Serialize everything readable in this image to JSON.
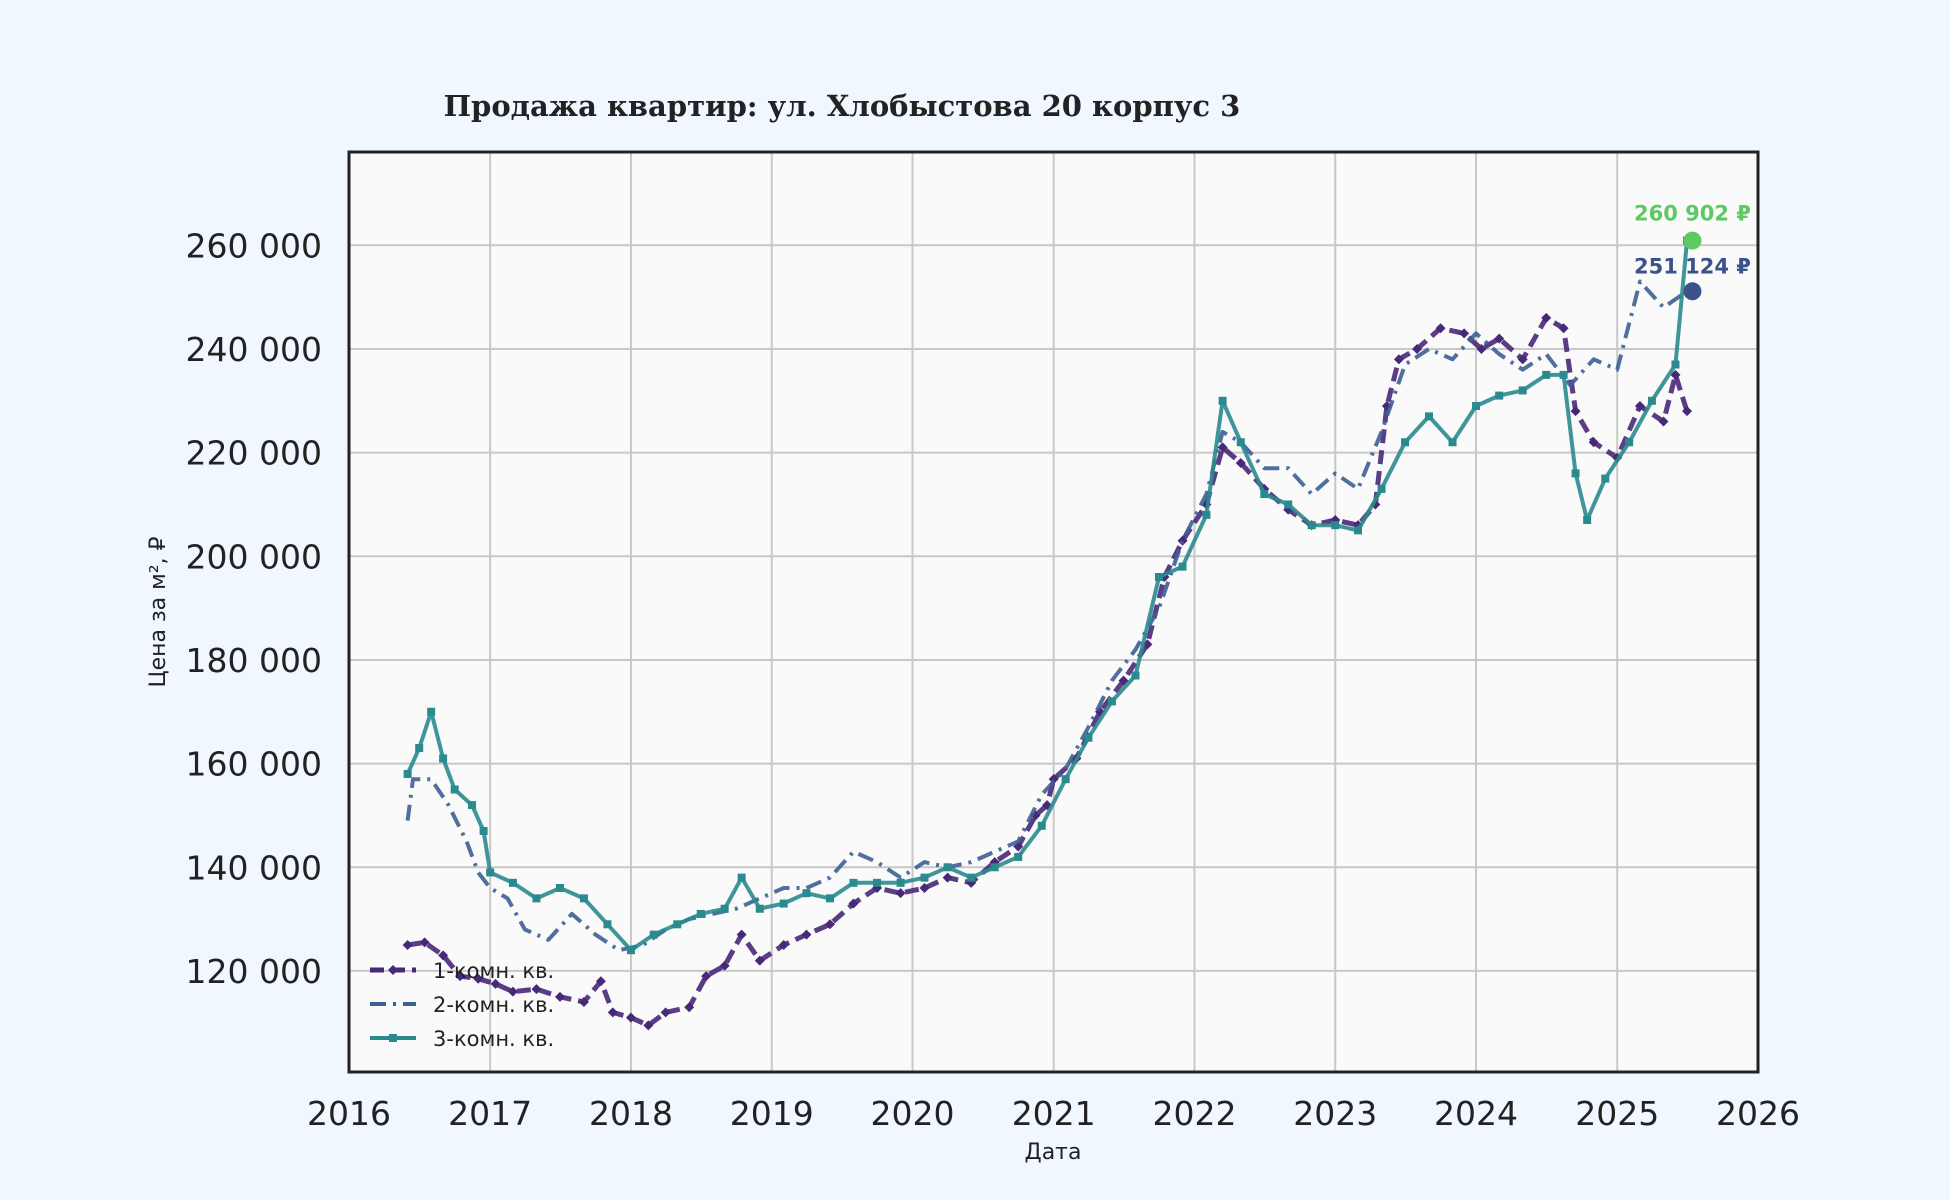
{
  "chart_data": {
    "type": "line",
    "title": "Продажа квартир: ул. Хлобыстова 20 корпус 3",
    "xlabel": "Дата",
    "ylabel": "Цена за м², ₽",
    "xlim": [
      "2016-01-01",
      "2026-01-01"
    ],
    "ylim": [
      100500,
      278000
    ],
    "x_ticks": [
      "2016",
      "2017",
      "2018",
      "2019",
      "2020",
      "2021",
      "2022",
      "2023",
      "2024",
      "2025",
      "2026"
    ],
    "y_ticks": [
      "120 000",
      "140 000",
      "160 000",
      "180 000",
      "200 000",
      "220 000",
      "240 000",
      "260 000"
    ],
    "y_tick_values": [
      120000,
      140000,
      160000,
      180000,
      200000,
      220000,
      240000,
      260000
    ],
    "grid": true,
    "legend_position": "bottom-left",
    "series": [
      {
        "name": "1-комн. кв.",
        "color": "#482878",
        "style": "dashed, diamond markers",
        "points": [
          [
            "2016-06-01",
            125000
          ],
          [
            "2016-07-15",
            125500
          ],
          [
            "2016-09-01",
            123000
          ],
          [
            "2016-10-15",
            119000
          ],
          [
            "2016-12-01",
            118500
          ],
          [
            "2017-01-15",
            117500
          ],
          [
            "2017-03-01",
            116000
          ],
          [
            "2017-05-01",
            116500
          ],
          [
            "2017-07-01",
            115000
          ],
          [
            "2017-09-01",
            114000
          ],
          [
            "2017-10-15",
            118000
          ],
          [
            "2017-11-15",
            112000
          ],
          [
            "2018-01-01",
            111000
          ],
          [
            "2018-02-15",
            109500
          ],
          [
            "2018-04-01",
            112000
          ],
          [
            "2018-06-01",
            113000
          ],
          [
            "2018-07-15",
            119000
          ],
          [
            "2018-09-01",
            121000
          ],
          [
            "2018-10-15",
            127000
          ],
          [
            "2018-12-01",
            122000
          ],
          [
            "2019-02-01",
            125000
          ],
          [
            "2019-04-01",
            127000
          ],
          [
            "2019-06-01",
            129000
          ],
          [
            "2019-08-01",
            133000
          ],
          [
            "2019-10-01",
            136000
          ],
          [
            "2019-12-01",
            135000
          ],
          [
            "2020-02-01",
            136000
          ],
          [
            "2020-04-01",
            138000
          ],
          [
            "2020-06-01",
            137000
          ],
          [
            "2020-08-01",
            141000
          ],
          [
            "2020-10-01",
            144000
          ],
          [
            "2020-11-15",
            150000
          ],
          [
            "2020-12-15",
            152000
          ],
          [
            "2021-01-01",
            157000
          ],
          [
            "2021-03-01",
            161000
          ],
          [
            "2021-05-01",
            170000
          ],
          [
            "2021-07-01",
            176000
          ],
          [
            "2021-09-01",
            183000
          ],
          [
            "2021-10-15",
            196000
          ],
          [
            "2021-12-01",
            203000
          ],
          [
            "2022-02-01",
            210000
          ],
          [
            "2022-03-15",
            221000
          ],
          [
            "2022-05-01",
            218000
          ],
          [
            "2022-07-01",
            213000
          ],
          [
            "2022-09-01",
            209000
          ],
          [
            "2022-11-01",
            206000
          ],
          [
            "2023-01-01",
            207000
          ],
          [
            "2023-03-01",
            206000
          ],
          [
            "2023-04-15",
            210000
          ],
          [
            "2023-05-15",
            229000
          ],
          [
            "2023-06-15",
            238000
          ],
          [
            "2023-08-01",
            240000
          ],
          [
            "2023-10-01",
            244000
          ],
          [
            "2023-12-01",
            243000
          ],
          [
            "2024-01-15",
            240000
          ],
          [
            "2024-03-01",
            242000
          ],
          [
            "2024-05-01",
            238000
          ],
          [
            "2024-07-01",
            246000
          ],
          [
            "2024-08-15",
            244000
          ],
          [
            "2024-09-15",
            228000
          ],
          [
            "2024-11-01",
            222000
          ],
          [
            "2025-01-01",
            219000
          ],
          [
            "2025-03-01",
            229000
          ],
          [
            "2025-05-01",
            226000
          ],
          [
            "2025-06-01",
            235000
          ],
          [
            "2025-07-01",
            228000
          ]
        ]
      },
      {
        "name": "2-комн. кв.",
        "color": "#3e5f93",
        "style": "dash-dot",
        "points": [
          [
            "2016-06-01",
            149000
          ],
          [
            "2016-06-15",
            157000
          ],
          [
            "2016-08-01",
            157000
          ],
          [
            "2016-09-15",
            152000
          ],
          [
            "2016-11-01",
            145000
          ],
          [
            "2016-12-01",
            139000
          ],
          [
            "2017-01-01",
            136000
          ],
          [
            "2017-02-15",
            134000
          ],
          [
            "2017-04-01",
            128000
          ],
          [
            "2017-06-01",
            126000
          ],
          [
            "2017-08-01",
            131000
          ],
          [
            "2017-10-01",
            127000
          ],
          [
            "2017-12-01",
            124000
          ],
          [
            "2018-02-01",
            125000
          ],
          [
            "2018-04-01",
            128000
          ],
          [
            "2018-06-01",
            130000
          ],
          [
            "2018-08-01",
            131000
          ],
          [
            "2018-10-01",
            132000
          ],
          [
            "2018-12-01",
            134000
          ],
          [
            "2019-02-01",
            136000
          ],
          [
            "2019-04-01",
            136000
          ],
          [
            "2019-06-01",
            138000
          ],
          [
            "2019-08-01",
            143000
          ],
          [
            "2019-10-01",
            141000
          ],
          [
            "2019-12-01",
            138000
          ],
          [
            "2020-02-01",
            141000
          ],
          [
            "2020-04-01",
            140000
          ],
          [
            "2020-06-01",
            141000
          ],
          [
            "2020-08-01",
            143000
          ],
          [
            "2020-10-01",
            145000
          ],
          [
            "2020-12-01",
            154000
          ],
          [
            "2021-02-01",
            159000
          ],
          [
            "2021-04-01",
            167000
          ],
          [
            "2021-06-01",
            176000
          ],
          [
            "2021-08-01",
            182000
          ],
          [
            "2021-10-01",
            190000
          ],
          [
            "2021-12-01",
            203000
          ],
          [
            "2022-02-01",
            212000
          ],
          [
            "2022-03-15",
            224000
          ],
          [
            "2022-05-01",
            222000
          ],
          [
            "2022-07-01",
            217000
          ],
          [
            "2022-09-01",
            217000
          ],
          [
            "2022-11-01",
            212000
          ],
          [
            "2023-01-01",
            216000
          ],
          [
            "2023-03-01",
            213000
          ],
          [
            "2023-05-01",
            224000
          ],
          [
            "2023-07-01",
            237000
          ],
          [
            "2023-09-01",
            240000
          ],
          [
            "2023-11-01",
            238000
          ],
          [
            "2024-01-01",
            243000
          ],
          [
            "2024-03-01",
            239000
          ],
          [
            "2024-05-01",
            236000
          ],
          [
            "2024-07-01",
            239000
          ],
          [
            "2024-09-01",
            233000
          ],
          [
            "2024-11-01",
            238000
          ],
          [
            "2025-01-01",
            236000
          ],
          [
            "2025-03-01",
            253000
          ],
          [
            "2025-05-01",
            248000
          ],
          [
            "2025-07-01",
            251124
          ]
        ]
      },
      {
        "name": "3-комн. кв.",
        "color": "#2a8a8e",
        "style": "solid, square markers",
        "points": [
          [
            "2016-06-01",
            158000
          ],
          [
            "2016-07-01",
            163000
          ],
          [
            "2016-08-01",
            170000
          ],
          [
            "2016-09-01",
            161000
          ],
          [
            "2016-10-01",
            155000
          ],
          [
            "2016-11-15",
            152000
          ],
          [
            "2016-12-15",
            147000
          ],
          [
            "2017-01-01",
            139000
          ],
          [
            "2017-03-01",
            137000
          ],
          [
            "2017-05-01",
            134000
          ],
          [
            "2017-07-01",
            136000
          ],
          [
            "2017-09-01",
            134000
          ],
          [
            "2017-11-01",
            129000
          ],
          [
            "2018-01-01",
            124000
          ],
          [
            "2018-03-01",
            127000
          ],
          [
            "2018-05-01",
            129000
          ],
          [
            "2018-07-01",
            131000
          ],
          [
            "2018-09-01",
            132000
          ],
          [
            "2018-10-15",
            138000
          ],
          [
            "2018-12-01",
            132000
          ],
          [
            "2019-02-01",
            133000
          ],
          [
            "2019-04-01",
            135000
          ],
          [
            "2019-06-01",
            134000
          ],
          [
            "2019-08-01",
            137000
          ],
          [
            "2019-10-01",
            137000
          ],
          [
            "2019-12-01",
            137000
          ],
          [
            "2020-02-01",
            138000
          ],
          [
            "2020-04-01",
            140000
          ],
          [
            "2020-06-01",
            138000
          ],
          [
            "2020-08-01",
            140000
          ],
          [
            "2020-10-01",
            142000
          ],
          [
            "2020-12-01",
            148000
          ],
          [
            "2021-02-01",
            157000
          ],
          [
            "2021-04-01",
            165000
          ],
          [
            "2021-06-01",
            172000
          ],
          [
            "2021-08-01",
            177000
          ],
          [
            "2021-10-01",
            196000
          ],
          [
            "2021-12-01",
            198000
          ],
          [
            "2022-02-01",
            208000
          ],
          [
            "2022-03-15",
            230000
          ],
          [
            "2022-05-01",
            222000
          ],
          [
            "2022-07-01",
            212000
          ],
          [
            "2022-09-01",
            210000
          ],
          [
            "2022-11-01",
            206000
          ],
          [
            "2023-01-01",
            206000
          ],
          [
            "2023-03-01",
            205000
          ],
          [
            "2023-05-01",
            213000
          ],
          [
            "2023-07-01",
            222000
          ],
          [
            "2023-09-01",
            227000
          ],
          [
            "2023-11-01",
            222000
          ],
          [
            "2024-01-01",
            229000
          ],
          [
            "2024-03-01",
            231000
          ],
          [
            "2024-05-01",
            232000
          ],
          [
            "2024-07-01",
            235000
          ],
          [
            "2024-08-15",
            235000
          ],
          [
            "2024-09-15",
            216000
          ],
          [
            "2024-10-15",
            207000
          ],
          [
            "2024-12-01",
            215000
          ],
          [
            "2025-02-01",
            222000
          ],
          [
            "2025-04-01",
            230000
          ],
          [
            "2025-06-01",
            237000
          ],
          [
            "2025-07-01",
            260902
          ]
        ]
      }
    ],
    "annotations": [
      {
        "text": "260 902 ₽",
        "date": "2025-07-15",
        "value": 260902,
        "color": "#5ec962"
      },
      {
        "text": "251 124 ₽",
        "date": "2025-07-15",
        "value": 251124,
        "color": "#3b528b"
      }
    ]
  }
}
